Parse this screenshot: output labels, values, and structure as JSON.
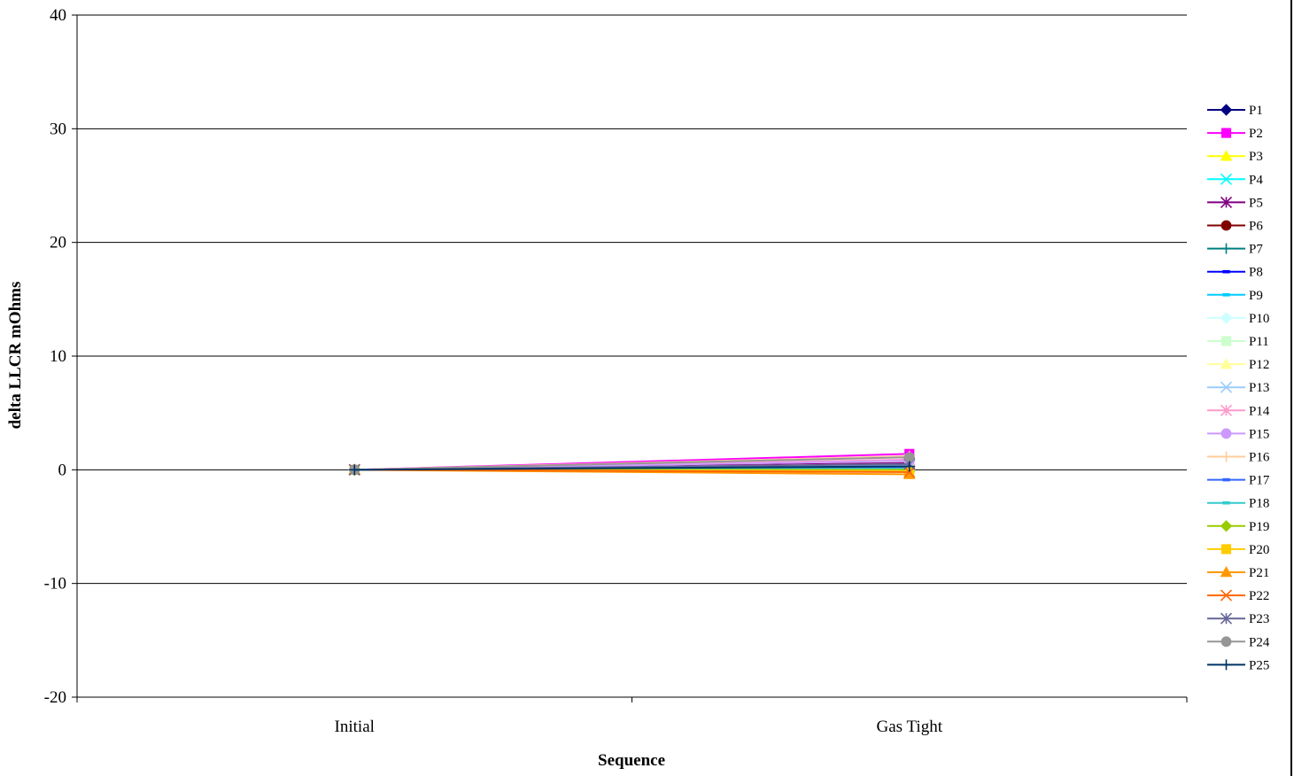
{
  "chart_data": {
    "type": "line",
    "title": "",
    "xlabel": "Sequence",
    "ylabel": "delta LLCR mOhms",
    "categories": [
      "Initial",
      "Gas Tight"
    ],
    "ylim": [
      -20,
      40
    ],
    "yticks": [
      40,
      30,
      20,
      10,
      0,
      -10,
      -20
    ],
    "grid": true,
    "legend_position": "right",
    "series": [
      {
        "name": "P1",
        "color": "#000080",
        "marker": "diamond",
        "values": [
          0,
          0.3
        ]
      },
      {
        "name": "P2",
        "color": "#FF00FF",
        "marker": "square",
        "values": [
          0,
          1.4
        ]
      },
      {
        "name": "P3",
        "color": "#FFFF00",
        "marker": "triangle",
        "values": [
          0,
          0.2
        ]
      },
      {
        "name": "P4",
        "color": "#00FFFF",
        "marker": "x",
        "values": [
          0,
          0.3
        ]
      },
      {
        "name": "P5",
        "color": "#800080",
        "marker": "star",
        "values": [
          0,
          0.6
        ]
      },
      {
        "name": "P6",
        "color": "#800000",
        "marker": "circle",
        "values": [
          0,
          0.2
        ]
      },
      {
        "name": "P7",
        "color": "#008080",
        "marker": "plus",
        "values": [
          0,
          0.1
        ]
      },
      {
        "name": "P8",
        "color": "#0000FF",
        "marker": "dash",
        "values": [
          0,
          0.3
        ]
      },
      {
        "name": "P9",
        "color": "#00CCFF",
        "marker": "dash",
        "values": [
          0,
          0.2
        ]
      },
      {
        "name": "P10",
        "color": "#CCFFFF",
        "marker": "diamond",
        "values": [
          0,
          0.4
        ]
      },
      {
        "name": "P11",
        "color": "#CCFFCC",
        "marker": "square",
        "values": [
          0,
          0.5
        ]
      },
      {
        "name": "P12",
        "color": "#FFFF99",
        "marker": "triangle",
        "values": [
          0,
          0.3
        ]
      },
      {
        "name": "P13",
        "color": "#99CCFF",
        "marker": "x",
        "values": [
          0,
          0.4
        ]
      },
      {
        "name": "P14",
        "color": "#FF99CC",
        "marker": "star",
        "values": [
          0,
          0.9
        ]
      },
      {
        "name": "P15",
        "color": "#CC99FF",
        "marker": "circle",
        "values": [
          0,
          0.8
        ]
      },
      {
        "name": "P16",
        "color": "#FFCC99",
        "marker": "plus",
        "values": [
          0,
          1.2
        ]
      },
      {
        "name": "P17",
        "color": "#3366FF",
        "marker": "dash",
        "values": [
          0,
          0.2
        ]
      },
      {
        "name": "P18",
        "color": "#33CCCC",
        "marker": "dash",
        "values": [
          0,
          0.1
        ]
      },
      {
        "name": "P19",
        "color": "#99CC00",
        "marker": "diamond",
        "values": [
          0,
          0.0
        ]
      },
      {
        "name": "P20",
        "color": "#FFCC00",
        "marker": "square",
        "values": [
          0,
          -0.1
        ]
      },
      {
        "name": "P21",
        "color": "#FF9900",
        "marker": "triangle",
        "values": [
          0,
          -0.4
        ]
      },
      {
        "name": "P22",
        "color": "#FF6600",
        "marker": "x",
        "values": [
          0,
          -0.2
        ]
      },
      {
        "name": "P23",
        "color": "#666699",
        "marker": "star",
        "values": [
          0,
          0.5
        ]
      },
      {
        "name": "P24",
        "color": "#969696",
        "marker": "circle",
        "values": [
          0,
          1.1
        ]
      },
      {
        "name": "P25",
        "color": "#003366",
        "marker": "plus",
        "values": [
          0,
          0.3
        ]
      }
    ]
  }
}
